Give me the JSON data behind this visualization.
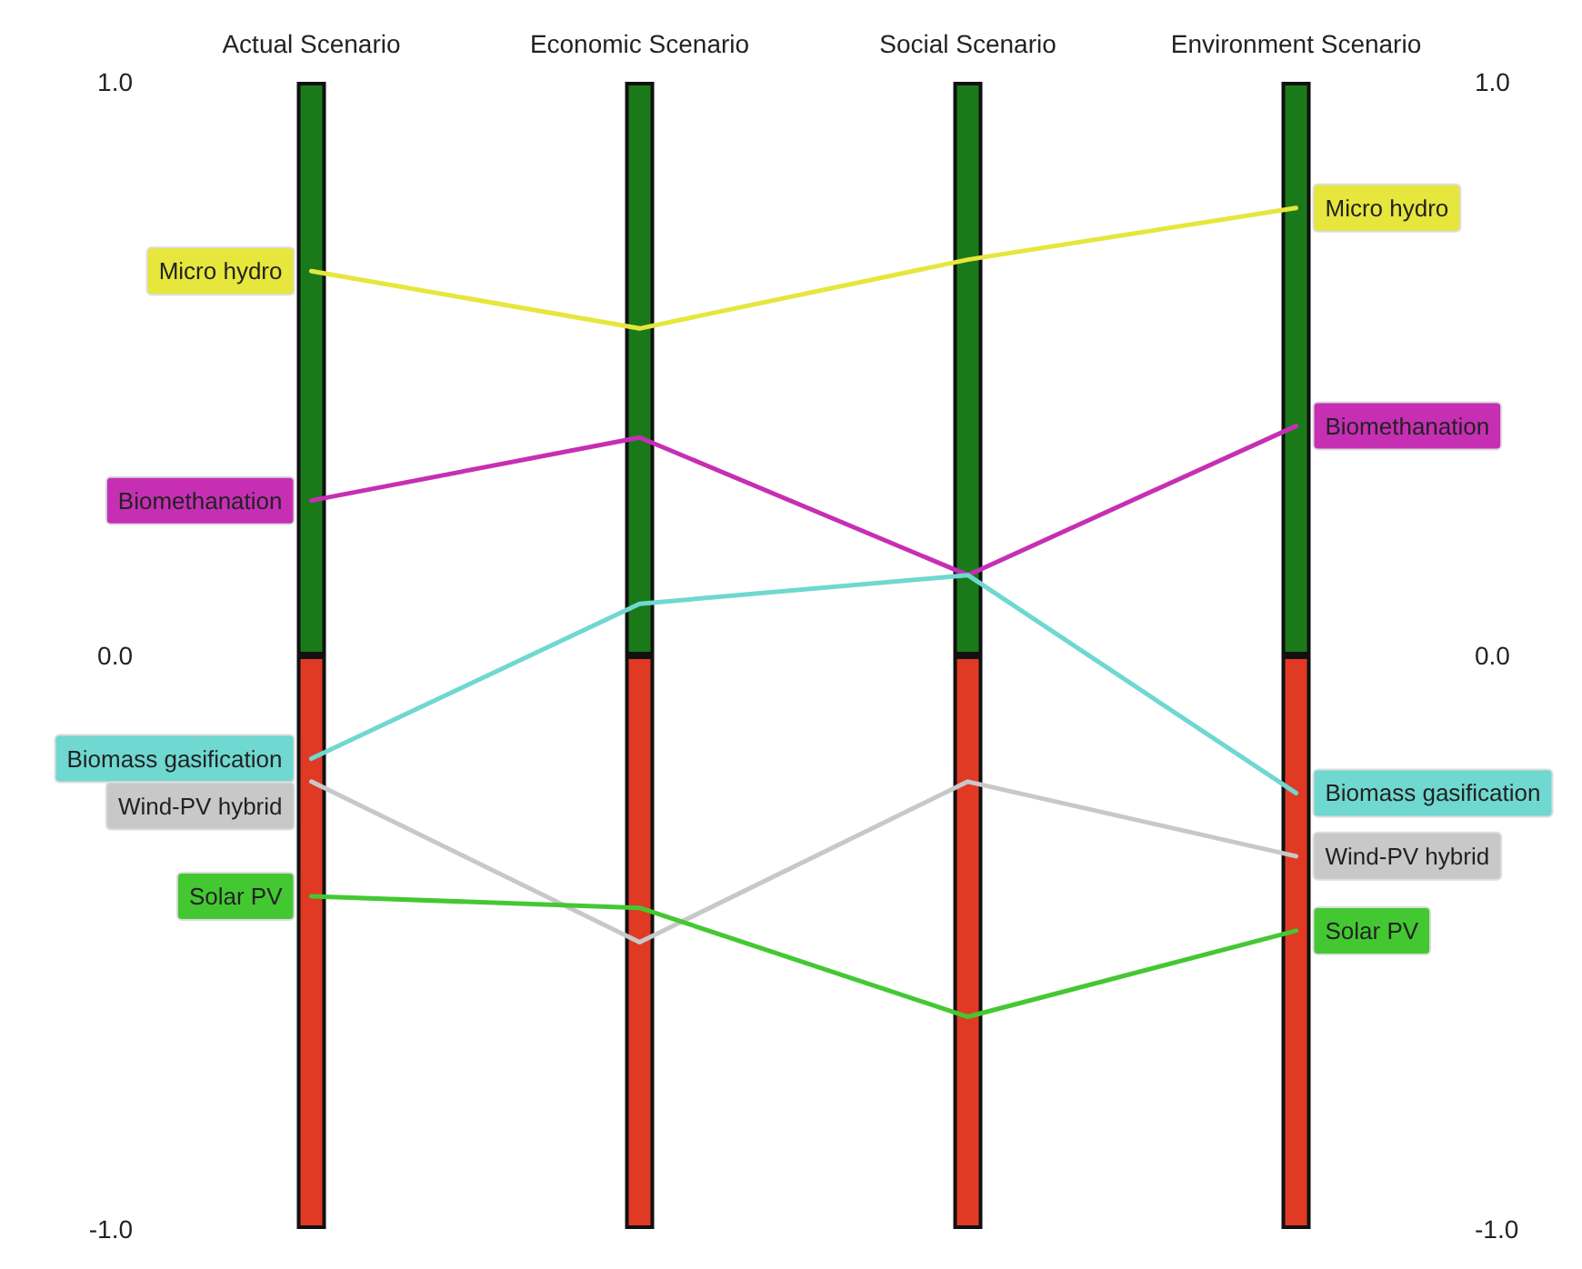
{
  "chart_data": {
    "type": "line",
    "categories": [
      "Actual Scenario",
      "Economic Scenario",
      "Social Scenario",
      "Environment Scenario"
    ],
    "series": [
      {
        "type": "bar",
        "color": "#1a7a1a",
        "values": [
          1,
          1,
          1,
          1
        ]
      },
      {
        "type": "bar",
        "color": "#e03a24",
        "values": [
          -1,
          -1,
          -1,
          -1
        ]
      },
      {
        "name": "Micro hydro",
        "color": "#e6e63c",
        "values": [
          0.67,
          0.57,
          0.69,
          0.78
        ]
      },
      {
        "name": "Biomethanation",
        "color": "#c62fb4",
        "values": [
          0.27,
          0.38,
          0.14,
          0.4
        ]
      },
      {
        "name": "Biomass gasification",
        "color": "#6fd8d0",
        "values": [
          -0.18,
          0.09,
          0.14,
          -0.24
        ]
      },
      {
        "name": "Wind-PV hybrid",
        "color": "#c8c8c8",
        "values": [
          -0.22,
          -0.5,
          -0.22,
          -0.35
        ]
      },
      {
        "name": "Solar PV",
        "color": "#44c832",
        "values": [
          -0.42,
          -0.44,
          -0.63,
          -0.48
        ]
      }
    ],
    "ylim": [
      -1,
      1
    ],
    "yticks": [
      {
        "value": -1,
        "label": "-1.0"
      },
      {
        "value": 0,
        "label": "0.0"
      },
      {
        "value": 1,
        "label": "1.0"
      }
    ],
    "y2lim": [
      -1,
      1
    ],
    "y2ticks": [
      {
        "value": -1,
        "label": "-1.0"
      },
      {
        "value": 0,
        "label": "0.0"
      },
      {
        "value": 1,
        "label": "1.0"
      }
    ],
    "stacked": true,
    "grid": false,
    "legend": false,
    "marker": "none",
    "line_style": "solid"
  }
}
